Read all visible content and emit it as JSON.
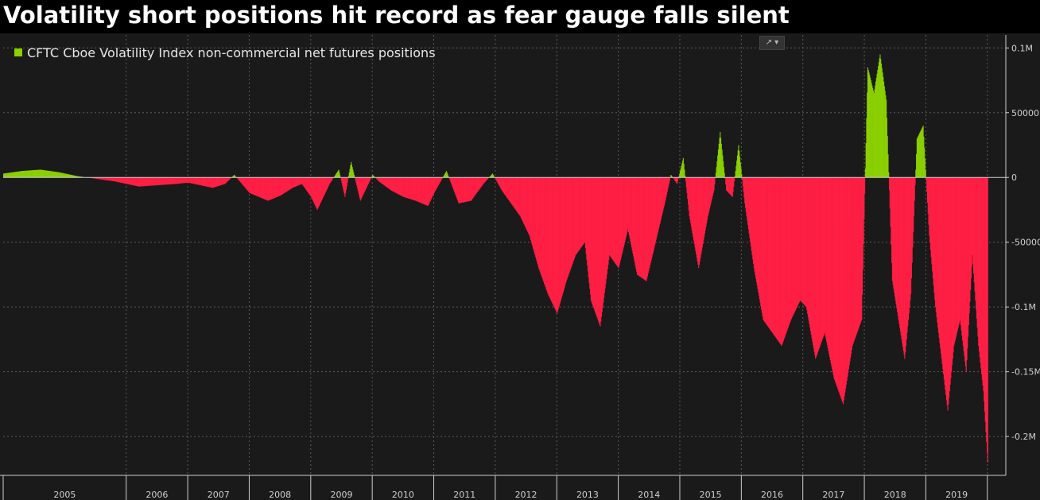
{
  "header": {
    "title": "Volatility short positions hit record as fear gauge falls silent"
  },
  "toolbar": {
    "chart_type_icon": "line-chart-icon",
    "dropdown_icon": "chevron-down-icon"
  },
  "colors": {
    "positive": "#8bd000",
    "negative": "#ff1f44",
    "background": "#1a1a1a",
    "title_background": "#000000"
  },
  "chart_data": {
    "type": "bar",
    "title": "Volatility short positions hit record as fear gauge falls silent",
    "xlabel": "",
    "ylabel": "",
    "legend_position": "top-left",
    "grid": true,
    "x_range": [
      2004.0,
      2020.3
    ],
    "ylim": [
      -230000,
      110000
    ],
    "yticks": [
      {
        "value": 100000,
        "label": "0.1M"
      },
      {
        "value": 50000,
        "label": "50000"
      },
      {
        "value": 0,
        "label": "0"
      },
      {
        "value": -50000,
        "label": "-50000"
      },
      {
        "value": -100000,
        "label": "-0.1M"
      },
      {
        "value": -150000,
        "label": "-0.15M"
      },
      {
        "value": -200000,
        "label": "-0.2M"
      }
    ],
    "xticks": [
      "2005",
      "2006",
      "2007",
      "2008",
      "2009",
      "2010",
      "2011",
      "2012",
      "2013",
      "2014",
      "2015",
      "2016",
      "2017",
      "2018",
      "2019"
    ],
    "year_bounds": [
      2004.0,
      2006.0,
      2007.0,
      2008.0,
      2009.0,
      2010.0,
      2011.0,
      2012.0,
      2013.0,
      2014.0,
      2015.0,
      2016.0,
      2017.0,
      2018.0,
      2019.0,
      2020.0
    ],
    "series": [
      {
        "name": "CFTC Cboe Volatility Index non-commercial net futures positions",
        "x": [
          2004.0,
          2004.3,
          2004.6,
          2004.9,
          2005.2,
          2005.5,
          2005.8,
          2006.0,
          2006.2,
          2006.5,
          2006.8,
          2007.0,
          2007.2,
          2007.4,
          2007.6,
          2007.75,
          2008.0,
          2008.3,
          2008.5,
          2008.7,
          2008.85,
          2009.0,
          2009.1,
          2009.3,
          2009.45,
          2009.55,
          2009.65,
          2009.8,
          2010.0,
          2010.1,
          2010.3,
          2010.5,
          2010.7,
          2010.9,
          2011.0,
          2011.2,
          2011.4,
          2011.6,
          2011.8,
          2011.95,
          2012.1,
          2012.25,
          2012.4,
          2012.55,
          2012.7,
          2012.85,
          2013.0,
          2013.15,
          2013.3,
          2013.45,
          2013.55,
          2013.7,
          2013.85,
          2014.0,
          2014.15,
          2014.3,
          2014.45,
          2014.6,
          2014.75,
          2014.85,
          2014.95,
          2015.05,
          2015.15,
          2015.3,
          2015.45,
          2015.55,
          2015.65,
          2015.75,
          2015.85,
          2015.95,
          2016.05,
          2016.2,
          2016.35,
          2016.5,
          2016.65,
          2016.8,
          2016.95,
          2017.05,
          2017.2,
          2017.35,
          2017.5,
          2017.65,
          2017.8,
          2017.95,
          2018.05,
          2018.15,
          2018.25,
          2018.35,
          2018.45,
          2018.55,
          2018.65,
          2018.75,
          2018.85,
          2018.95,
          2019.05,
          2019.15,
          2019.25,
          2019.35,
          2019.45,
          2019.55,
          2019.65,
          2019.75,
          2019.85,
          2019.93,
          2020.0
        ],
        "values": [
          3000,
          5000,
          6000,
          4000,
          1000,
          -1000,
          -3000,
          -5000,
          -7000,
          -6000,
          -5000,
          -4000,
          -6000,
          -8000,
          -5000,
          2000,
          -12000,
          -18000,
          -14000,
          -8000,
          -5000,
          -15000,
          -25000,
          -5000,
          6000,
          -15000,
          12000,
          -18000,
          2000,
          -3000,
          -10000,
          -15000,
          -18000,
          -22000,
          -12000,
          5000,
          -20000,
          -18000,
          -5000,
          3000,
          -10000,
          -20000,
          -30000,
          -45000,
          -70000,
          -90000,
          -105000,
          -80000,
          -60000,
          -50000,
          -95000,
          -115000,
          -60000,
          -70000,
          -40000,
          -75000,
          -80000,
          -50000,
          -20000,
          2000,
          -5000,
          15000,
          -30000,
          -70000,
          -30000,
          -10000,
          35000,
          -10000,
          -15000,
          25000,
          -20000,
          -70000,
          -110000,
          -120000,
          -130000,
          -110000,
          -95000,
          -100000,
          -140000,
          -120000,
          -155000,
          -175000,
          -130000,
          -110000,
          85000,
          65000,
          95000,
          60000,
          -80000,
          -110000,
          -140000,
          -90000,
          30000,
          40000,
          -45000,
          -100000,
          -140000,
          -180000,
          -130000,
          -110000,
          -150000,
          -60000,
          -130000,
          -165000,
          -220000
        ]
      }
    ]
  }
}
